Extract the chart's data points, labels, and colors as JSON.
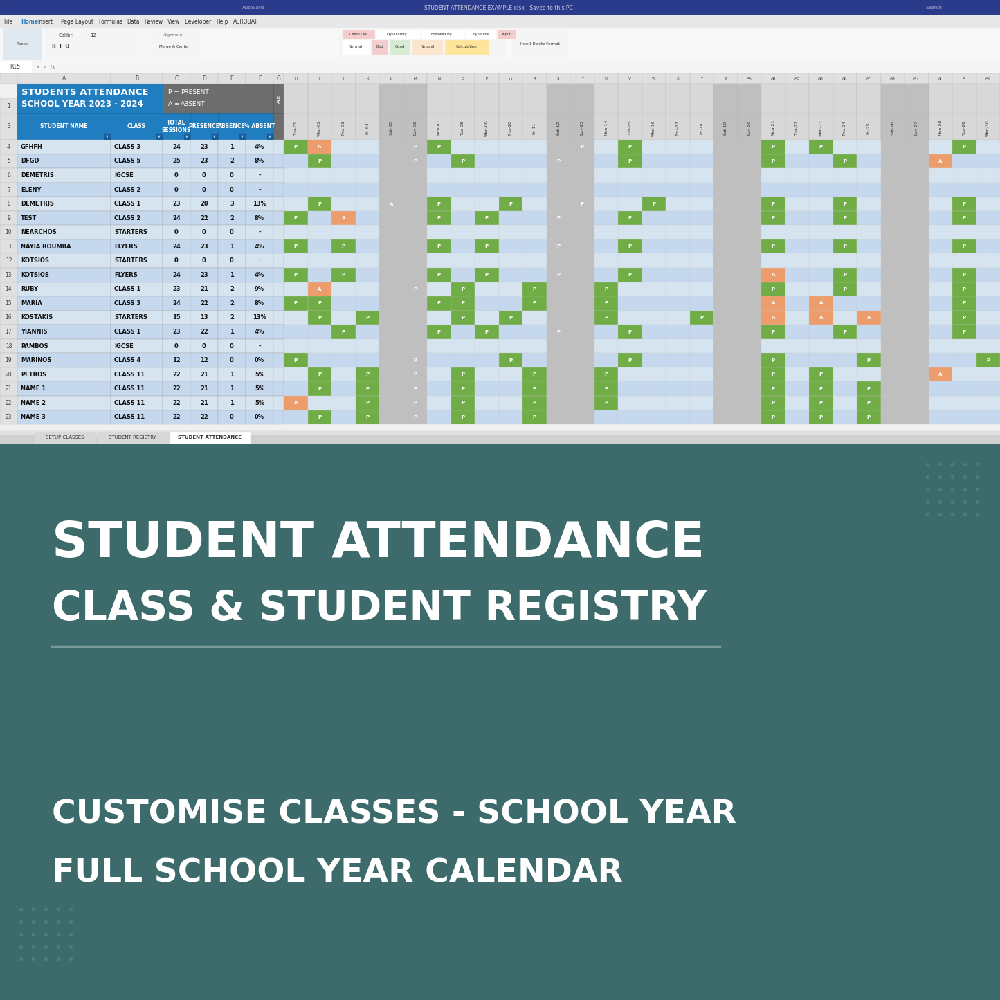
{
  "excel_screenshot": {
    "title_row1": "STUDENTS ATTENDANCE",
    "title_row2": "SCHOOL YEAR 2023 - 2024",
    "header_bg": "#1f7dc0",
    "legend_bg": "#6d6d6d",
    "students": [
      {
        "name": "GFHFH",
        "class": "CLASS 3",
        "total": 24,
        "presence": 23,
        "absence": 1,
        "pct": "4%"
      },
      {
        "name": "DFGD",
        "class": "CLASS 5",
        "total": 25,
        "presence": 23,
        "absence": 2,
        "pct": "8%"
      },
      {
        "name": "DEMETRIS",
        "class": "IGCSE",
        "total": 0,
        "presence": 0,
        "absence": 0,
        "pct": "-"
      },
      {
        "name": "ELENY",
        "class": "CLASS 2",
        "total": 0,
        "presence": 0,
        "absence": 0,
        "pct": "-"
      },
      {
        "name": "DEMETRIS",
        "class": "CLASS 1",
        "total": 23,
        "presence": 20,
        "absence": 3,
        "pct": "13%"
      },
      {
        "name": "TEST",
        "class": "CLASS 2",
        "total": 24,
        "presence": 22,
        "absence": 2,
        "pct": "8%"
      },
      {
        "name": "NEARCHOS",
        "class": "STARTERS",
        "total": 0,
        "presence": 0,
        "absence": 0,
        "pct": "-"
      },
      {
        "name": "NAYIA ROUMBA",
        "class": "FLYERS",
        "total": 24,
        "presence": 23,
        "absence": 1,
        "pct": "4%"
      },
      {
        "name": "KOTSIOS",
        "class": "STARTERS",
        "total": 0,
        "presence": 0,
        "absence": 0,
        "pct": "-"
      },
      {
        "name": "KOTSIOS",
        "class": "FLYERS",
        "total": 24,
        "presence": 23,
        "absence": 1,
        "pct": "4%"
      },
      {
        "name": "RUBY",
        "class": "CLASS 1",
        "total": 23,
        "presence": 21,
        "absence": 2,
        "pct": "9%"
      },
      {
        "name": "MARIA",
        "class": "CLASS 3",
        "total": 24,
        "presence": 22,
        "absence": 2,
        "pct": "8%"
      },
      {
        "name": "KOSTAKIS",
        "class": "STARTERS",
        "total": 15,
        "presence": 13,
        "absence": 2,
        "pct": "13%"
      },
      {
        "name": "YIANNIS",
        "class": "CLASS 1",
        "total": 23,
        "presence": 22,
        "absence": 1,
        "pct": "4%"
      },
      {
        "name": "PAMBOS",
        "class": "IGCSE",
        "total": 0,
        "presence": 0,
        "absence": 0,
        "pct": "-"
      },
      {
        "name": "MARINOS",
        "class": "CLASS 4",
        "total": 12,
        "presence": 12,
        "absence": 0,
        "pct": "0%"
      },
      {
        "name": "PETROS",
        "class": "CLASS 11",
        "total": 22,
        "presence": 21,
        "absence": 1,
        "pct": "5%"
      },
      {
        "name": "NAME 1",
        "class": "CLASS 11",
        "total": 22,
        "presence": 21,
        "absence": 1,
        "pct": "5%"
      },
      {
        "name": "NAME 2",
        "class": "CLASS 11",
        "total": 22,
        "presence": 21,
        "absence": 1,
        "pct": "5%"
      },
      {
        "name": "NAME 3",
        "class": "CLASS 11",
        "total": 22,
        "presence": 22,
        "absence": 0,
        "pct": "0%"
      }
    ],
    "date_cols": [
      "Tue-01",
      "Wed-02",
      "Thu-03",
      "Fri-04",
      "Sat-05",
      "Sun-06",
      "Mon-07",
      "Tue-08",
      "Wed-09",
      "Thu-10",
      "Fri-11",
      "Sat-12",
      "Sun-13",
      "Mon-14",
      "Tue-15",
      "Wed-16",
      "Thu-17",
      "Fri-18",
      "Sat-19",
      "Sun-20",
      "Mon-21",
      "Tue-22",
      "Wed-23",
      "Thu-24",
      "Fri-25",
      "Sat-26",
      "Sun-27",
      "Mon-28",
      "Tue-29",
      "Wed-30"
    ],
    "attendance_data": [
      [
        "P",
        "A",
        "",
        "",
        "",
        "P",
        "P",
        "",
        "",
        "",
        "",
        "",
        "P",
        "",
        "P",
        "",
        "",
        "",
        "",
        "",
        "P",
        "",
        "P",
        "",
        "",
        "",
        "",
        "",
        "P",
        ""
      ],
      [
        "",
        "P",
        "",
        "",
        "",
        "P",
        "",
        "P",
        "",
        "",
        "",
        "P",
        "",
        "",
        "P",
        "",
        "",
        "",
        "",
        "",
        "P",
        "",
        "",
        "P",
        "",
        "",
        "",
        "A",
        "",
        ""
      ],
      [
        "",
        "",
        "",
        "",
        "",
        "",
        "",
        "",
        "",
        "",
        "",
        "",
        "",
        "",
        "",
        "",
        "",
        "",
        "",
        "",
        "",
        "",
        "",
        "",
        "",
        "",
        "",
        "",
        "",
        ""
      ],
      [
        "",
        "",
        "",
        "",
        "",
        "",
        "",
        "",
        "",
        "",
        "",
        "",
        "",
        "",
        "",
        "",
        "",
        "",
        "",
        "",
        "",
        "",
        "",
        "",
        "",
        "",
        "",
        "",
        "",
        ""
      ],
      [
        "",
        "P",
        "",
        "",
        "A",
        "",
        "P",
        "",
        "",
        "P",
        "",
        "",
        "P",
        "",
        "",
        "P",
        "",
        "",
        "",
        "",
        "P",
        "",
        "",
        "P",
        "",
        "",
        "",
        "",
        "P",
        ""
      ],
      [
        "P",
        "",
        "A",
        "",
        "",
        "",
        "P",
        "",
        "P",
        "",
        "",
        "P",
        "",
        "",
        "P",
        "",
        "",
        "",
        "",
        "",
        "P",
        "",
        "",
        "P",
        "",
        "",
        "",
        "",
        "P",
        ""
      ],
      [
        "",
        "",
        "",
        "",
        "",
        "",
        "",
        "",
        "",
        "",
        "",
        "",
        "",
        "",
        "",
        "",
        "",
        "",
        "",
        "",
        "",
        "",
        "",
        "",
        "",
        "",
        "",
        "",
        "",
        ""
      ],
      [
        "P",
        "",
        "P",
        "",
        "",
        "",
        "P",
        "",
        "P",
        "",
        "",
        "P",
        "",
        "",
        "P",
        "",
        "",
        "",
        "",
        "",
        "P",
        "",
        "",
        "P",
        "",
        "",
        "",
        "",
        "P",
        ""
      ],
      [
        "",
        "",
        "",
        "",
        "",
        "",
        "",
        "",
        "",
        "",
        "",
        "",
        "",
        "",
        "",
        "",
        "",
        "",
        "",
        "",
        "",
        "",
        "",
        "",
        "",
        "",
        "",
        "",
        "",
        ""
      ],
      [
        "P",
        "",
        "P",
        "",
        "",
        "",
        "P",
        "",
        "P",
        "",
        "",
        "P",
        "",
        "",
        "P",
        "",
        "",
        "",
        "",
        "",
        "A",
        "",
        "",
        "P",
        "",
        "",
        "",
        "",
        "P",
        ""
      ],
      [
        "",
        "A",
        "",
        "",
        "",
        "P",
        "",
        "P",
        "",
        "",
        "P",
        "",
        "",
        "P",
        "",
        "",
        "",
        "",
        "",
        "",
        "P",
        "",
        "",
        "P",
        "",
        "",
        "",
        "",
        "P",
        ""
      ],
      [
        "P",
        "P",
        "",
        "",
        "",
        "",
        "P",
        "P",
        "",
        "",
        "P",
        "",
        "",
        "P",
        "",
        "",
        "",
        "",
        "",
        "",
        "A",
        "",
        "A",
        "",
        "",
        "",
        "",
        "",
        "P",
        ""
      ],
      [
        "",
        "P",
        "",
        "P",
        "",
        "",
        "",
        "P",
        "",
        "P",
        "",
        "",
        "",
        "P",
        "",
        "",
        "",
        "P",
        "",
        "",
        "A",
        "",
        "A",
        "",
        "A",
        "",
        "",
        "",
        "P",
        ""
      ],
      [
        "",
        "",
        "P",
        "",
        "",
        "",
        "P",
        "",
        "P",
        "",
        "",
        "P",
        "",
        "",
        "P",
        "",
        "",
        "",
        "",
        "",
        "P",
        "",
        "",
        "P",
        "",
        "",
        "",
        "",
        "P",
        ""
      ],
      [
        "",
        "",
        "",
        "",
        "",
        "",
        "",
        "",
        "",
        "",
        "",
        "",
        "",
        "",
        "",
        "",
        "",
        "",
        "",
        "",
        "",
        "",
        "",
        "",
        "",
        "",
        "",
        "",
        "",
        ""
      ],
      [
        "P",
        "",
        "",
        "",
        "",
        "P",
        "",
        "",
        "",
        "P",
        "",
        "",
        "",
        "",
        "P",
        "",
        "",
        "",
        "",
        "",
        "P",
        "",
        "",
        "",
        "P",
        "",
        "",
        "",
        "",
        "P"
      ],
      [
        "",
        "P",
        "",
        "P",
        "",
        "P",
        "",
        "P",
        "",
        "",
        "P",
        "",
        "",
        "P",
        "",
        "",
        "",
        "",
        "",
        "",
        "P",
        "",
        "P",
        "",
        "",
        "",
        "",
        "A",
        "",
        ""
      ],
      [
        "",
        "P",
        "",
        "P",
        "",
        "P",
        "",
        "P",
        "",
        "",
        "P",
        "",
        "",
        "P",
        "",
        "",
        "",
        "",
        "",
        "",
        "P",
        "",
        "P",
        "",
        "P",
        "",
        "",
        "",
        "",
        ""
      ],
      [
        "A",
        "",
        "",
        "P",
        "",
        "P",
        "",
        "P",
        "",
        "",
        "P",
        "",
        "",
        "P",
        "",
        "",
        "",
        "",
        "",
        "",
        "P",
        "",
        "P",
        "",
        "P",
        "",
        "",
        "",
        "",
        ""
      ],
      [
        "",
        "P",
        "",
        "P",
        "",
        "P",
        "",
        "P",
        "",
        "",
        "P",
        "",
        "",
        "",
        "",
        "",
        "",
        "",
        "",
        "",
        "P",
        "",
        "P",
        "",
        "P",
        "",
        "",
        "",
        "",
        ""
      ]
    ],
    "weekend_cols": [
      4,
      5,
      11,
      12,
      18,
      19,
      25,
      26
    ],
    "row_colors": [
      "#d6e4f0",
      "#c5d8ee"
    ],
    "present_color": "#70ad47",
    "absent_color": "#ed9d6b",
    "weekend_color": "#bfbfbf"
  },
  "bottom_section": {
    "bg_color": "#3d6b6b",
    "text_color": "#ffffff",
    "line1": "STUDENT ATTENDANCE",
    "line2": "CLASS & STUDENT REGISTRY",
    "line3": "CUSTOMISE CLASSES - SCHOOL YEAR",
    "line4": "FULL SCHOOL YEAR CALENDAR",
    "dot_color": "#4e8080",
    "line_color": "#7a9a9a"
  }
}
